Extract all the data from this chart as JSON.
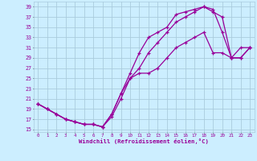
{
  "xlabel": "Windchill (Refroidissement éolien,°C)",
  "bg_color": "#cceeff",
  "grid_color": "#aaccdd",
  "line_color": "#990099",
  "line1_x": [
    0,
    1,
    2,
    3,
    4,
    5,
    6,
    7,
    8,
    9,
    10,
    11,
    12,
    13,
    14,
    15,
    16,
    17,
    18,
    19,
    20,
    21,
    22,
    23
  ],
  "line1_y": [
    20,
    19,
    18,
    17,
    16.5,
    16,
    16,
    15.5,
    18,
    22,
    26,
    30,
    33,
    34,
    35,
    37.5,
    38,
    38.5,
    39,
    38,
    37,
    29,
    31,
    31
  ],
  "line2_x": [
    0,
    1,
    2,
    3,
    4,
    5,
    6,
    7,
    8,
    9,
    10,
    11,
    12,
    13,
    14,
    15,
    16,
    17,
    18,
    19,
    20,
    21,
    22,
    23
  ],
  "line2_y": [
    20,
    19,
    18,
    17,
    16.5,
    16,
    16,
    15.5,
    17.5,
    21,
    25,
    27,
    30,
    32,
    34,
    36,
    37,
    38,
    39,
    38.5,
    34,
    29,
    29,
    31
  ],
  "line3_x": [
    0,
    1,
    2,
    3,
    4,
    5,
    6,
    7,
    8,
    9,
    10,
    11,
    12,
    13,
    14,
    15,
    16,
    17,
    18,
    19,
    20,
    21,
    22,
    23
  ],
  "line3_y": [
    20,
    19,
    18,
    17,
    16.5,
    16,
    16,
    15.5,
    18,
    22,
    25,
    26,
    26,
    27,
    29,
    31,
    32,
    33,
    34,
    30,
    30,
    29,
    29,
    31
  ],
  "ylim": [
    14.5,
    40
  ],
  "xlim": [
    -0.5,
    23.5
  ],
  "yticks": [
    15,
    17,
    19,
    21,
    23,
    25,
    27,
    29,
    31,
    33,
    35,
    37,
    39
  ],
  "xticks": [
    0,
    1,
    2,
    3,
    4,
    5,
    6,
    7,
    8,
    9,
    10,
    11,
    12,
    13,
    14,
    15,
    16,
    17,
    18,
    19,
    20,
    21,
    22,
    23
  ]
}
